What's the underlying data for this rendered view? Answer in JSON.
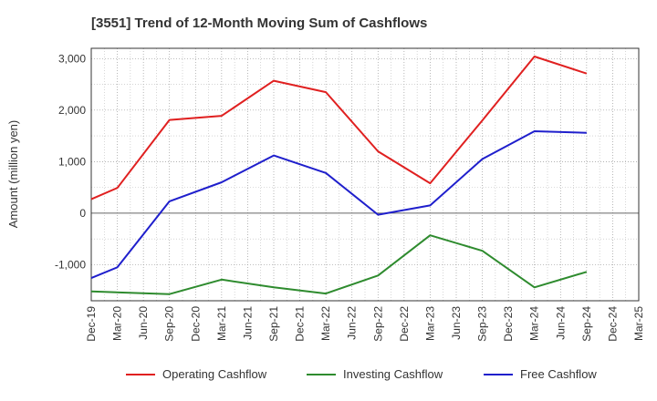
{
  "chart_data": {
    "type": "line",
    "title": "[3551]  Trend of 12-Month Moving Sum of Cashflows",
    "xlabel": "",
    "ylabel": "Amount (million yen)",
    "ylim": [
      -1700,
      3200
    ],
    "yticks": [
      -1000,
      0,
      1000,
      2000,
      3000
    ],
    "ytick_labels": [
      "-1,000",
      "0",
      "1,000",
      "2,000",
      "3,000"
    ],
    "categories": [
      "Dec-19",
      "Mar-20",
      "Jun-20",
      "Sep-20",
      "Dec-20",
      "Mar-21",
      "Jun-21",
      "Sep-21",
      "Dec-21",
      "Mar-22",
      "Jun-22",
      "Sep-22",
      "Dec-22",
      "Mar-23",
      "Jun-23",
      "Sep-23",
      "Dec-23",
      "Mar-24",
      "Jun-24",
      "Sep-24",
      "Dec-24",
      "Mar-25"
    ],
    "grid": true,
    "legend_position": "bottom",
    "series": [
      {
        "name": "Operating Cashflow",
        "color": "#e02020",
        "points": [
          {
            "x": "Dec-19",
            "y": 270
          },
          {
            "x": "Mar-20",
            "y": 490
          },
          {
            "x": "Sep-20",
            "y": 1810
          },
          {
            "x": "Mar-21",
            "y": 1890
          },
          {
            "x": "Sep-21",
            "y": 2570
          },
          {
            "x": "Mar-22",
            "y": 2350
          },
          {
            "x": "Sep-22",
            "y": 1200
          },
          {
            "x": "Mar-23",
            "y": 580
          },
          {
            "x": "Sep-23",
            "y": 1800
          },
          {
            "x": "Mar-24",
            "y": 3040
          },
          {
            "x": "Sep-24",
            "y": 2710
          }
        ]
      },
      {
        "name": "Investing Cashflow",
        "color": "#2e8b2e",
        "points": [
          {
            "x": "Dec-19",
            "y": -1520
          },
          {
            "x": "Sep-20",
            "y": -1570
          },
          {
            "x": "Mar-21",
            "y": -1290
          },
          {
            "x": "Sep-21",
            "y": -1440
          },
          {
            "x": "Mar-22",
            "y": -1560
          },
          {
            "x": "Sep-22",
            "y": -1210
          },
          {
            "x": "Mar-23",
            "y": -430
          },
          {
            "x": "Sep-23",
            "y": -730
          },
          {
            "x": "Mar-24",
            "y": -1440
          },
          {
            "x": "Sep-24",
            "y": -1140
          }
        ]
      },
      {
        "name": "Free Cashflow",
        "color": "#1f1fcc",
        "points": [
          {
            "x": "Dec-19",
            "y": -1260
          },
          {
            "x": "Mar-20",
            "y": -1050
          },
          {
            "x": "Sep-20",
            "y": 230
          },
          {
            "x": "Mar-21",
            "y": 600
          },
          {
            "x": "Sep-21",
            "y": 1120
          },
          {
            "x": "Mar-22",
            "y": 780
          },
          {
            "x": "Sep-22",
            "y": -30
          },
          {
            "x": "Mar-23",
            "y": 150
          },
          {
            "x": "Sep-23",
            "y": 1050
          },
          {
            "x": "Mar-24",
            "y": 1590
          },
          {
            "x": "Sep-24",
            "y": 1560
          }
        ]
      }
    ]
  }
}
